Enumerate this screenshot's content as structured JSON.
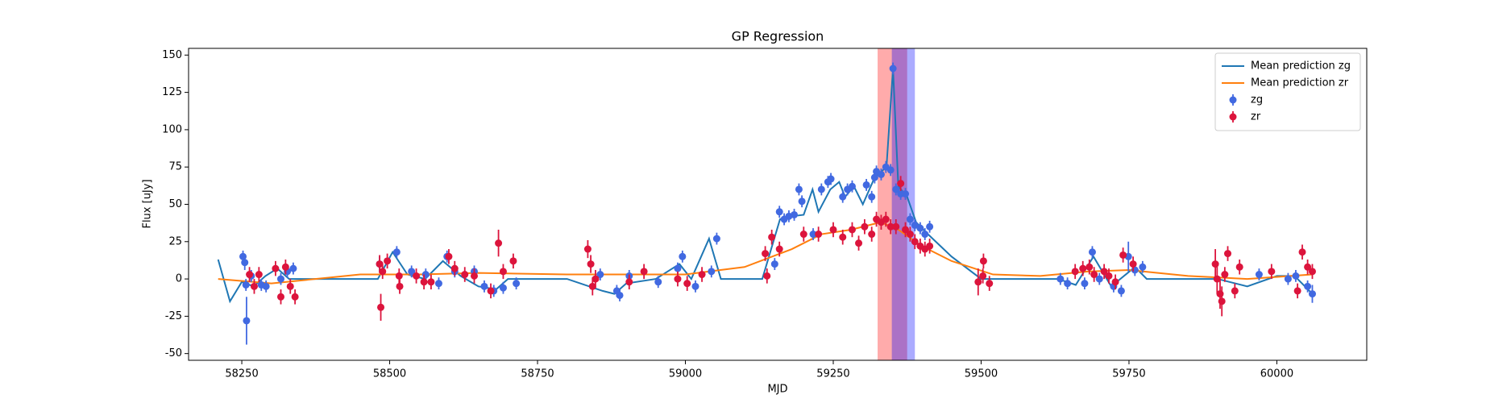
{
  "chart_data": {
    "type": "errorbar",
    "title": "GP Regression",
    "xlabel": "MJD",
    "ylabel": "Flux [uJy]",
    "xlim": [
      58160,
      60152
    ],
    "ylim": [
      -54.5,
      154.5
    ],
    "xticks": [
      58250,
      58500,
      58750,
      59000,
      59250,
      59500,
      59750,
      60000
    ],
    "yticks": [
      -50,
      -25,
      0,
      25,
      50,
      75,
      100,
      125,
      150
    ],
    "legend": "upper right",
    "spans": [
      {
        "xlim": [
          59325,
          59375
        ],
        "color": "#ff0000"
      },
      {
        "xlim": [
          59349,
          59388
        ],
        "color": "#0000ff"
      }
    ],
    "lines": [
      {
        "name": "Mean prediction zg",
        "color": "#1f77b4",
        "x": [
          58210,
          58230,
          58250,
          58270,
          58290,
          58310,
          58330,
          58400,
          58480,
          58505,
          58530,
          58560,
          58590,
          58620,
          58650,
          58680,
          58700,
          58800,
          58860,
          58880,
          58900,
          58950,
          58990,
          59010,
          59040,
          59060,
          59130,
          59160,
          59180,
          59200,
          59215,
          59225,
          59245,
          59260,
          59270,
          59285,
          59300,
          59320,
          59340,
          59351,
          59360,
          59375,
          59390,
          59410,
          59450,
          59500,
          59630,
          59660,
          59690,
          59720,
          59760,
          59780,
          59900,
          59950,
          60000,
          60030,
          60060
        ],
        "values": [
          13,
          -15,
          -2,
          -5,
          2,
          7,
          0,
          0,
          0,
          18,
          3,
          0,
          12,
          2,
          -5,
          -7,
          0,
          0,
          -8,
          -10,
          -3,
          0,
          10,
          0,
          27,
          0,
          0,
          40,
          42,
          43,
          60,
          45,
          60,
          65,
          55,
          62,
          50,
          68,
          75,
          141,
          62,
          55,
          38,
          30,
          15,
          0,
          0,
          -4,
          15,
          -5,
          8,
          0,
          0,
          -5,
          2,
          2,
          -10
        ]
      },
      {
        "name": "Mean prediction zr",
        "color": "#ff7f0e",
        "x": [
          58210,
          58300,
          58400,
          58450,
          58550,
          58650,
          58800,
          59000,
          59100,
          59180,
          59230,
          59280,
          59330,
          59360,
          59400,
          59450,
          59520,
          59600,
          59680,
          59750,
          59850,
          59950,
          60060
        ],
        "values": [
          0,
          -3,
          1,
          3,
          3,
          4,
          3,
          3,
          8,
          20,
          30,
          33,
          38,
          33,
          22,
          12,
          3,
          2,
          5,
          6,
          2,
          0,
          3
        ]
      }
    ],
    "series": [
      {
        "name": "zg",
        "color": "#4169e1",
        "x": [
          58252,
          58255,
          58257,
          58258,
          58266,
          58283,
          58291,
          58316,
          58327,
          58337,
          58483,
          58512,
          58537,
          58561,
          58583,
          58597,
          58610,
          58643,
          58660,
          58676,
          58692,
          58714,
          58856,
          58884,
          58889,
          58905,
          58954,
          58987,
          58995,
          59017,
          59044,
          59053,
          59151,
          59159,
          59167,
          59175,
          59184,
          59192,
          59197,
          59216,
          59230,
          59241,
          59246,
          59266,
          59274,
          59282,
          59306,
          59315,
          59320,
          59323,
          59331,
          59339,
          59347,
          59351,
          59356,
          59364,
          59372,
          59380,
          59388,
          59397,
          59405,
          59413,
          59634,
          59646,
          59675,
          59688,
          59700,
          59724,
          59737,
          59749,
          59760,
          59773,
          59970,
          60019,
          60032,
          60052,
          60060
        ],
        "values": [
          15,
          11,
          -4,
          -28,
          2,
          -4,
          -5,
          0,
          5,
          7,
          10,
          18,
          5,
          3,
          -3,
          15,
          5,
          5,
          -5,
          -8,
          -6,
          -3,
          3,
          -8,
          -11,
          2,
          -2,
          7,
          15,
          -5,
          5,
          27,
          10,
          45,
          40,
          42,
          43,
          60,
          52,
          30,
          60,
          65,
          67,
          55,
          60,
          62,
          63,
          55,
          68,
          72,
          70,
          75,
          73,
          141,
          60,
          57,
          57,
          40,
          36,
          34,
          30,
          35,
          0,
          -3,
          -3,
          18,
          0,
          -5,
          -8,
          15,
          6,
          8,
          3,
          0,
          2,
          -5,
          -10
        ],
        "errors": [
          4,
          5,
          4,
          16,
          4,
          4,
          4,
          4,
          4,
          4,
          5,
          4,
          4,
          4,
          4,
          4,
          4,
          4,
          4,
          4,
          4,
          4,
          4,
          4,
          4,
          4,
          4,
          4,
          4,
          4,
          4,
          4,
          4,
          4,
          4,
          4,
          4,
          4,
          4,
          4,
          4,
          4,
          4,
          4,
          4,
          4,
          4,
          4,
          4,
          4,
          4,
          4,
          4,
          4,
          4,
          4,
          4,
          4,
          4,
          4,
          4,
          4,
          4,
          4,
          4,
          4,
          4,
          4,
          4,
          10,
          4,
          4,
          4,
          4,
          4,
          4,
          6
        ]
      },
      {
        "name": "zr",
        "color": "#dc143c",
        "x": [
          58263,
          58271,
          58279,
          58307,
          58316,
          58324,
          58332,
          58340,
          58483,
          58485,
          58488,
          58496,
          58516,
          58517,
          58545,
          58558,
          58570,
          58600,
          58610,
          58627,
          58643,
          58671,
          58684,
          58692,
          58709,
          58835,
          58840,
          58843,
          58848,
          58905,
          58930,
          58987,
          59003,
          59028,
          59135,
          59138,
          59146,
          59159,
          59200,
          59225,
          59250,
          59266,
          59282,
          59293,
          59303,
          59315,
          59323,
          59331,
          59339,
          59347,
          59356,
          59364,
          59372,
          59380,
          59388,
          59397,
          59405,
          59413,
          59495,
          59503,
          59504,
          59514,
          59659,
          59672,
          59683,
          59691,
          59708,
          59716,
          59727,
          59740,
          59757,
          59896,
          59899,
          59904,
          59907,
          59912,
          59917,
          59929,
          59937,
          59991,
          60035,
          60043,
          60052,
          60060
        ],
        "values": [
          3,
          -5,
          3,
          7,
          -12,
          8,
          -5,
          -12,
          10,
          -19,
          5,
          12,
          2,
          -5,
          2,
          -2,
          -2,
          15,
          7,
          3,
          2,
          -8,
          24,
          5,
          12,
          20,
          10,
          -5,
          0,
          -2,
          5,
          0,
          -3,
          3,
          17,
          2,
          28,
          20,
          30,
          30,
          33,
          28,
          33,
          24,
          35,
          30,
          40,
          38,
          40,
          35,
          35,
          64,
          33,
          30,
          25,
          22,
          20,
          22,
          -2,
          2,
          12,
          -3,
          5,
          7,
          8,
          3,
          5,
          2,
          -2,
          16,
          10,
          10,
          0,
          -10,
          -15,
          3,
          17,
          -8,
          8,
          5,
          -8,
          18,
          8,
          5
        ],
        "errors": [
          5,
          5,
          5,
          5,
          5,
          5,
          5,
          5,
          6,
          9,
          5,
          5,
          5,
          5,
          5,
          5,
          5,
          5,
          5,
          5,
          5,
          5,
          9,
          5,
          5,
          6,
          6,
          6,
          6,
          5,
          5,
          5,
          5,
          5,
          5,
          5,
          5,
          5,
          5,
          5,
          5,
          5,
          5,
          5,
          5,
          5,
          5,
          5,
          5,
          5,
          5,
          5,
          5,
          5,
          5,
          5,
          5,
          5,
          9,
          5,
          5,
          5,
          5,
          5,
          5,
          5,
          5,
          5,
          5,
          5,
          5,
          10,
          10,
          10,
          10,
          5,
          5,
          5,
          5,
          5,
          5,
          5,
          5,
          5
        ]
      }
    ]
  }
}
